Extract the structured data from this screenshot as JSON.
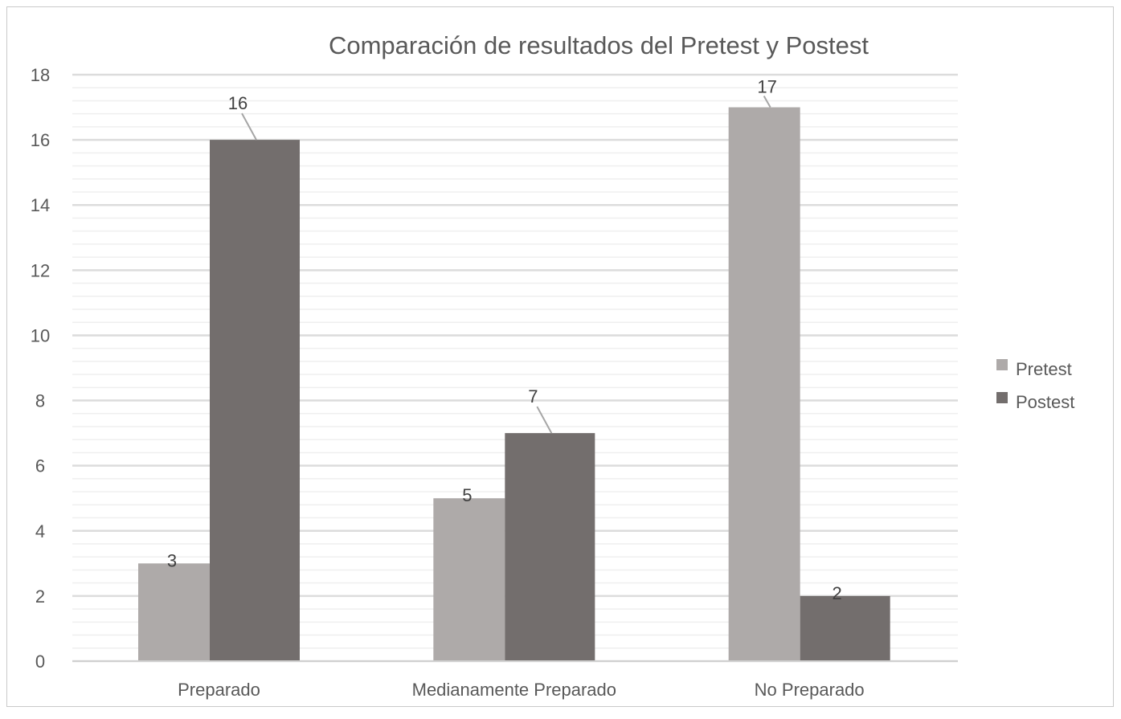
{
  "chart_data": {
    "type": "bar",
    "title": "Comparación de resultados del Pretest y Postest",
    "categories": [
      "Preparado",
      "Medianamente Preparado",
      "No Preparado"
    ],
    "series": [
      {
        "name": "Pretest",
        "values": [
          3,
          5,
          17
        ],
        "color": "#aeaaa9"
      },
      {
        "name": "Postest",
        "values": [
          16,
          7,
          2
        ],
        "color": "#736e6d"
      }
    ],
    "yticks": [
      "0",
      "2",
      "4",
      "6",
      "8",
      "10",
      "12",
      "14",
      "16",
      "18"
    ],
    "ylim": [
      0,
      18
    ],
    "xlabel": "",
    "ylabel": "",
    "grid": true,
    "legend_position": "right"
  }
}
